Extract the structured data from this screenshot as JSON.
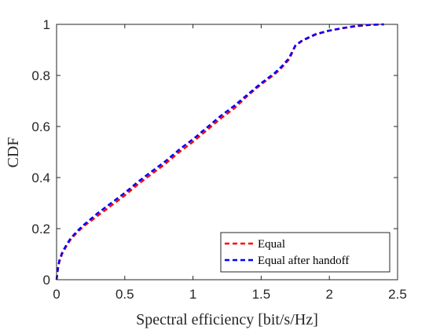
{
  "chart_data": {
    "type": "line",
    "xlabel": "Spectral efficiency [bit/s/Hz]",
    "ylabel": "CDF",
    "xlim": [
      0,
      2.5
    ],
    "ylim": [
      0,
      1
    ],
    "xticks": [
      0,
      0.5,
      1,
      1.5,
      2,
      2.5
    ],
    "yticks": [
      0,
      0.2,
      0.4,
      0.6,
      0.8,
      1
    ],
    "xtick_labels": [
      "0",
      "0.5",
      "1",
      "1.5",
      "2",
      "2.5"
    ],
    "ytick_labels": [
      "0",
      "0.2",
      "0.4",
      "0.6",
      "0.8",
      "1"
    ],
    "grid": false,
    "legend_position": "bottom-right",
    "series": [
      {
        "name": "Equal",
        "color": "#ff0000",
        "line_style": "dashed",
        "x": [
          0,
          0.01,
          0.02,
          0.04,
          0.07,
          0.1,
          0.15,
          0.2,
          0.3,
          0.4,
          0.5,
          0.6,
          0.7,
          0.8,
          0.9,
          1.0,
          1.1,
          1.2,
          1.3,
          1.4,
          1.5,
          1.6,
          1.65,
          1.7,
          1.72,
          1.75,
          1.8,
          1.9,
          2.0,
          2.1,
          2.2,
          2.3,
          2.4
        ],
        "y": [
          0,
          0.04,
          0.07,
          0.1,
          0.13,
          0.155,
          0.185,
          0.21,
          0.25,
          0.29,
          0.33,
          0.375,
          0.415,
          0.455,
          0.5,
          0.54,
          0.585,
          0.63,
          0.67,
          0.72,
          0.765,
          0.805,
          0.83,
          0.86,
          0.88,
          0.915,
          0.935,
          0.96,
          0.975,
          0.985,
          0.993,
          0.998,
          1.0
        ]
      },
      {
        "name": "Equal after handoff",
        "color": "#0000ff",
        "line_style": "dashed",
        "x": [
          0,
          0.01,
          0.02,
          0.04,
          0.07,
          0.1,
          0.15,
          0.2,
          0.3,
          0.4,
          0.5,
          0.6,
          0.7,
          0.8,
          0.9,
          1.0,
          1.1,
          1.2,
          1.3,
          1.4,
          1.5,
          1.6,
          1.65,
          1.7,
          1.72,
          1.75,
          1.8,
          1.9,
          2.0,
          2.1,
          2.2,
          2.3,
          2.4
        ],
        "y": [
          0,
          0.045,
          0.075,
          0.105,
          0.135,
          0.16,
          0.19,
          0.215,
          0.26,
          0.3,
          0.34,
          0.385,
          0.425,
          0.465,
          0.51,
          0.55,
          0.595,
          0.64,
          0.68,
          0.725,
          0.77,
          0.81,
          0.835,
          0.865,
          0.885,
          0.917,
          0.937,
          0.962,
          0.976,
          0.986,
          0.994,
          0.998,
          1.0
        ]
      }
    ]
  }
}
